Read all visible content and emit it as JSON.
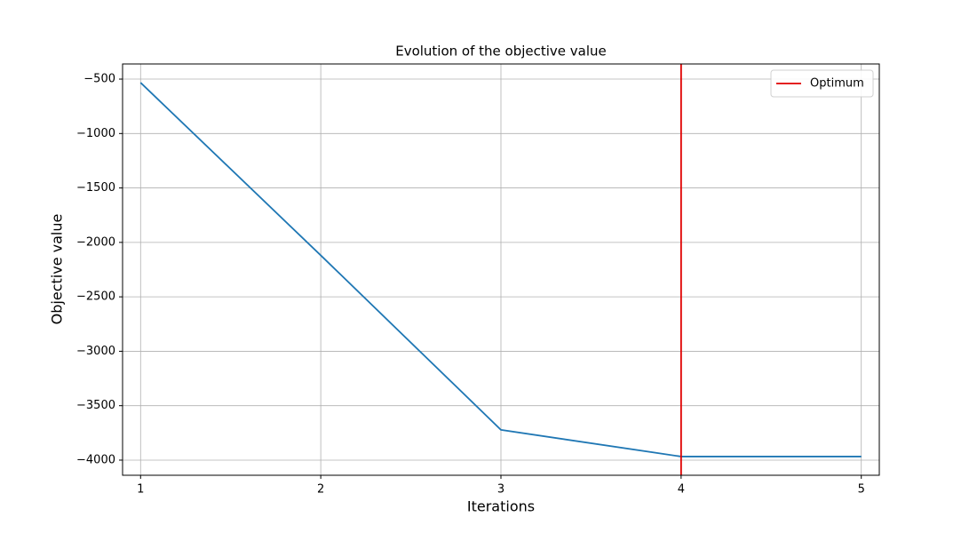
{
  "chart_data": {
    "type": "line",
    "title": "Evolution of the objective value",
    "x_label": "Iterations",
    "y_label": "Objective value",
    "x": [
      1,
      2,
      3,
      4,
      5
    ],
    "values": [
      -533,
      -2119,
      -3722,
      -3967,
      -3967
    ],
    "color": "#1f77b4",
    "xlim": [
      0.9,
      5.1
    ],
    "xticks": [
      1,
      2,
      3,
      4,
      5
    ],
    "ylim": [
      -4139,
      -361
    ],
    "yticks": [
      {
        "value": -500,
        "label": "−500"
      },
      {
        "value": -1000,
        "label": "−1000"
      },
      {
        "value": -1500,
        "label": "−1500"
      },
      {
        "value": -2000,
        "label": "−2000"
      },
      {
        "value": -2500,
        "label": "−2500"
      },
      {
        "value": -3000,
        "label": "−3000"
      },
      {
        "value": -3500,
        "label": "−3500"
      },
      {
        "value": -4000,
        "label": "−4000"
      }
    ],
    "grid": true,
    "reference_lines": [
      {
        "name": "Optimum",
        "x": 4,
        "color": "#e00000"
      }
    ],
    "legend": "upper right"
  }
}
